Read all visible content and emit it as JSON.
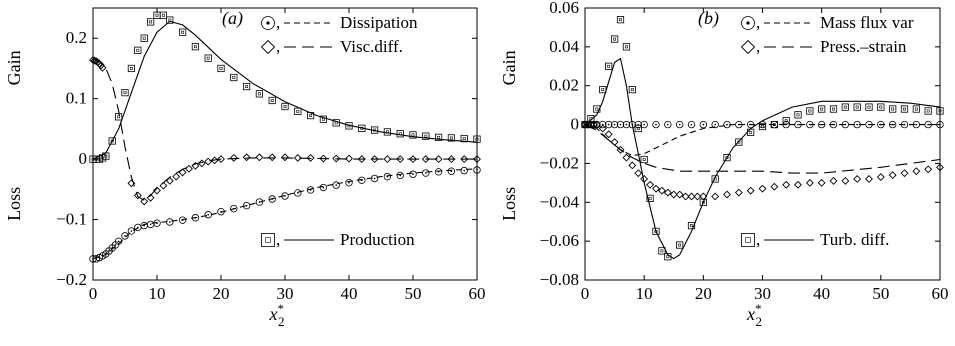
{
  "chart_data": [
    {
      "type": "line",
      "panel_label": "(a)",
      "xlabel": "x*2",
      "ylabel_top": "Gain",
      "ylabel_bottom": "Loss",
      "xlim": [
        0,
        60
      ],
      "ylim": [
        -0.2,
        0.25
      ],
      "x_ticks": [
        0,
        10,
        20,
        30,
        40,
        50,
        60
      ],
      "y_ticks": [
        -0.2,
        -0.1,
        0,
        0.1,
        0.2
      ],
      "x_tick_labels": [
        "0",
        "10",
        "20",
        "30",
        "40",
        "50",
        "60"
      ],
      "y_tick_labels": [
        "−0.2",
        "−0.1",
        "0",
        "0.1",
        "0.2"
      ],
      "grid": false,
      "series": [
        {
          "name": "Dissipation",
          "line_style": "short-dash",
          "marker": "circle",
          "x": [
            0,
            2,
            4,
            6,
            8,
            10,
            12,
            14,
            16,
            18,
            20,
            25,
            30,
            35,
            40,
            45,
            50,
            55,
            60
          ],
          "y": [
            -0.165,
            -0.158,
            -0.14,
            -0.12,
            -0.108,
            -0.105,
            -0.103,
            -0.1,
            -0.097,
            -0.093,
            -0.088,
            -0.074,
            -0.06,
            -0.047,
            -0.037,
            -0.029,
            -0.023,
            -0.019,
            -0.016
          ]
        },
        {
          "name": "Visc.diff.",
          "line_style": "long-dash",
          "marker": "diamond",
          "x": [
            0,
            1,
            2,
            3,
            4,
            5,
            6,
            7,
            8,
            9,
            10,
            12,
            14,
            16,
            18,
            20,
            25,
            30,
            35,
            40,
            50,
            60
          ],
          "y": [
            0.165,
            0.162,
            0.15,
            0.125,
            0.08,
            0.02,
            -0.03,
            -0.062,
            -0.068,
            -0.06,
            -0.048,
            -0.03,
            -0.017,
            -0.008,
            -0.003,
            0.0,
            0.002,
            0.002,
            0.001,
            0.0,
            0.0,
            0.0
          ]
        },
        {
          "name": "Production",
          "line_style": "solid",
          "marker": "square",
          "x": [
            0,
            2,
            4,
            6,
            8,
            10,
            12,
            14,
            16,
            18,
            20,
            25,
            30,
            35,
            40,
            45,
            50,
            55,
            60
          ],
          "y": [
            0.0,
            0.01,
            0.05,
            0.11,
            0.17,
            0.21,
            0.228,
            0.222,
            0.205,
            0.185,
            0.165,
            0.125,
            0.095,
            0.072,
            0.056,
            0.045,
            0.037,
            0.032,
            0.028
          ]
        }
      ],
      "marker_points": {
        "circle": {
          "x": [
            0,
            0.5,
            1,
            1.5,
            2,
            2.5,
            3,
            3.5,
            4,
            5,
            6,
            7,
            8,
            9,
            10,
            12,
            14,
            16,
            18,
            20,
            22,
            24,
            26,
            28,
            30,
            32,
            34,
            36,
            38,
            40,
            42,
            44,
            46,
            48,
            50,
            52,
            54,
            56,
            58,
            60
          ],
          "y": [
            -0.165,
            -0.165,
            -0.163,
            -0.16,
            -0.157,
            -0.152,
            -0.147,
            -0.142,
            -0.136,
            -0.127,
            -0.119,
            -0.113,
            -0.11,
            -0.108,
            -0.106,
            -0.104,
            -0.101,
            -0.097,
            -0.092,
            -0.087,
            -0.082,
            -0.077,
            -0.071,
            -0.066,
            -0.061,
            -0.056,
            -0.051,
            -0.047,
            -0.043,
            -0.039,
            -0.035,
            -0.032,
            -0.029,
            -0.027,
            -0.025,
            -0.023,
            -0.021,
            -0.02,
            -0.019,
            -0.018
          ]
        },
        "diamond": {
          "x": [
            0,
            0.25,
            0.5,
            0.75,
            1,
            1.25,
            1.5,
            6,
            7,
            8,
            9,
            10,
            11,
            12,
            13,
            14,
            15,
            16,
            17,
            18,
            19,
            20,
            22,
            24,
            26,
            28,
            30,
            32,
            34,
            36,
            38,
            40,
            42,
            44,
            46,
            48,
            50,
            52,
            54,
            56,
            58,
            60
          ],
          "y": [
            0.164,
            0.163,
            0.162,
            0.16,
            0.158,
            0.155,
            0.151,
            -0.04,
            -0.06,
            -0.07,
            -0.064,
            -0.052,
            -0.044,
            -0.036,
            -0.029,
            -0.022,
            -0.016,
            -0.011,
            -0.007,
            -0.004,
            -0.002,
            0.0,
            0.002,
            0.003,
            0.003,
            0.003,
            0.003,
            0.002,
            0.002,
            0.001,
            0.001,
            0.001,
            0.0,
            0.0,
            0.0,
            0.0,
            0.0,
            0.0,
            0.0,
            0.0,
            0.0,
            0.0
          ]
        },
        "square": {
          "x": [
            0,
            0.5,
            1,
            1.5,
            2,
            3,
            4,
            5,
            6,
            7,
            8,
            9,
            10,
            11,
            12,
            14,
            16,
            18,
            20,
            22,
            24,
            26,
            28,
            30,
            32,
            34,
            36,
            38,
            40,
            42,
            44,
            46,
            48,
            50,
            52,
            54,
            56,
            58,
            60
          ],
          "y": [
            0.0,
            0.0,
            0.0,
            0.002,
            0.005,
            0.03,
            0.07,
            0.11,
            0.15,
            0.18,
            0.2,
            0.227,
            0.238,
            0.238,
            0.23,
            0.21,
            0.186,
            0.167,
            0.15,
            0.135,
            0.12,
            0.108,
            0.097,
            0.087,
            0.079,
            0.072,
            0.066,
            0.06,
            0.055,
            0.051,
            0.048,
            0.045,
            0.042,
            0.04,
            0.038,
            0.036,
            0.035,
            0.034,
            0.033
          ]
        }
      },
      "legend": [
        {
          "marker": "circle",
          "line_style": "short-dash",
          "label": "Dissipation",
          "position": "top-right"
        },
        {
          "marker": "diamond",
          "line_style": "long-dash",
          "label": "Visc.diff.",
          "position": "top-right"
        },
        {
          "marker": "square",
          "line_style": "solid",
          "label": "Production",
          "position": "bottom-right"
        }
      ]
    },
    {
      "type": "line",
      "panel_label": "(b)",
      "xlabel": "x*2",
      "ylabel_top": "Gain",
      "ylabel_bottom": "Loss",
      "xlim": [
        0,
        60
      ],
      "ylim": [
        -0.08,
        0.06
      ],
      "x_ticks": [
        0,
        10,
        20,
        30,
        40,
        50,
        60
      ],
      "y_ticks": [
        -0.08,
        -0.06,
        -0.04,
        -0.02,
        0,
        0.02,
        0.04,
        0.06
      ],
      "x_tick_labels": [
        "0",
        "10",
        "20",
        "30",
        "40",
        "50",
        "60"
      ],
      "y_tick_labels": [
        "−0.08",
        "−0.06",
        "−0.04",
        "−0.02",
        "0",
        "0.02",
        "0.04",
        "0.06"
      ],
      "grid": false,
      "series": [
        {
          "name": "Mass flux var",
          "line_style": "short-dash",
          "marker": "circle",
          "x": [
            0,
            2,
            4,
            6,
            8,
            10,
            12,
            14,
            16,
            18,
            20,
            25,
            30,
            35,
            40,
            50,
            60
          ],
          "y": [
            0.0,
            -0.002,
            -0.008,
            -0.013,
            -0.016,
            -0.015,
            -0.012,
            -0.009,
            -0.006,
            -0.004,
            -0.002,
            0.0,
            0.0,
            0.0,
            0.0,
            0.0,
            0.0
          ]
        },
        {
          "name": "Press.–strain",
          "line_style": "long-dash",
          "marker": "diamond",
          "x": [
            0,
            2,
            4,
            6,
            8,
            10,
            12,
            14,
            16,
            18,
            20,
            25,
            30,
            35,
            40,
            50,
            60
          ],
          "y": [
            0.0,
            -0.003,
            -0.008,
            -0.013,
            -0.017,
            -0.02,
            -0.022,
            -0.023,
            -0.024,
            -0.024,
            -0.024,
            -0.024,
            -0.024,
            -0.025,
            -0.025,
            -0.022,
            -0.018
          ]
        },
        {
          "name": "Turb. diff.",
          "line_style": "solid",
          "marker": "square",
          "x": [
            0,
            2,
            3,
            4,
            5,
            6,
            7,
            8,
            9,
            10,
            12,
            14,
            15,
            16,
            18,
            20,
            22,
            25,
            28,
            30,
            35,
            40,
            45,
            50,
            55,
            60
          ],
          "y": [
            0.0,
            0.005,
            0.012,
            0.022,
            0.032,
            0.034,
            0.02,
            0.0,
            -0.015,
            -0.03,
            -0.055,
            -0.067,
            -0.069,
            -0.067,
            -0.055,
            -0.04,
            -0.027,
            -0.012,
            -0.002,
            0.002,
            0.009,
            0.012,
            0.012,
            0.012,
            0.011,
            0.009
          ]
        }
      ],
      "marker_points": {
        "circle": {
          "x": [
            0,
            0.5,
            1,
            1.5,
            2,
            3,
            4,
            5,
            6,
            7,
            8,
            9,
            10,
            12,
            14,
            16,
            18,
            20,
            22,
            24,
            26,
            28,
            30,
            32,
            34,
            36,
            38,
            40,
            42,
            44,
            46,
            48,
            50,
            52,
            54,
            56,
            58,
            60
          ],
          "y": [
            0,
            0,
            0,
            0,
            0,
            0,
            0,
            0,
            0,
            0,
            0,
            0,
            0,
            0,
            0,
            0,
            0,
            0,
            0,
            0,
            0,
            0,
            0,
            0,
            0,
            0,
            0,
            0,
            0,
            0,
            0,
            0,
            0,
            0,
            0,
            0,
            0,
            0
          ]
        },
        "diamond": {
          "x": [
            0,
            0.5,
            1,
            1.5,
            2,
            3,
            4,
            5,
            6,
            7,
            8,
            9,
            10,
            11,
            12,
            13,
            14,
            15,
            16,
            17,
            18,
            19,
            20,
            22,
            24,
            26,
            28,
            30,
            32,
            34,
            36,
            38,
            40,
            42,
            44,
            46,
            48,
            50,
            52,
            54,
            56,
            58,
            60
          ],
          "y": [
            0.0,
            0.0,
            0.0,
            0.0,
            0.0,
            -0.002,
            -0.005,
            -0.009,
            -0.013,
            -0.017,
            -0.021,
            -0.025,
            -0.028,
            -0.031,
            -0.033,
            -0.034,
            -0.035,
            -0.036,
            -0.036,
            -0.037,
            -0.037,
            -0.037,
            -0.037,
            -0.037,
            -0.036,
            -0.035,
            -0.034,
            -0.033,
            -0.032,
            -0.031,
            -0.031,
            -0.03,
            -0.03,
            -0.029,
            -0.029,
            -0.028,
            -0.028,
            -0.027,
            -0.026,
            -0.025,
            -0.024,
            -0.023,
            -0.022
          ]
        },
        "square": {
          "x": [
            0,
            1,
            2,
            3,
            4,
            5,
            6,
            7,
            8,
            9,
            10,
            11,
            12,
            13,
            14,
            16,
            18,
            20,
            22,
            24,
            26,
            28,
            30,
            32,
            34,
            36,
            38,
            40,
            42,
            44,
            46,
            48,
            50,
            52,
            54,
            56,
            58,
            60
          ],
          "y": [
            0.0,
            0.003,
            0.008,
            0.018,
            0.03,
            0.044,
            0.054,
            0.04,
            0.018,
            -0.002,
            -0.018,
            -0.038,
            -0.055,
            -0.065,
            -0.068,
            -0.062,
            -0.052,
            -0.04,
            -0.028,
            -0.017,
            -0.009,
            -0.004,
            -0.001,
            0.0,
            0.002,
            0.005,
            0.007,
            0.008,
            0.008,
            0.009,
            0.009,
            0.009,
            0.009,
            0.008,
            0.008,
            0.008,
            0.007,
            0.007
          ]
        }
      },
      "legend": [
        {
          "marker": "circle",
          "line_style": "short-dash",
          "label": "Mass flux var",
          "position": "top-right"
        },
        {
          "marker": "diamond",
          "line_style": "long-dash",
          "label": "Press.–strain",
          "position": "top-right"
        },
        {
          "marker": "square",
          "line_style": "solid",
          "label": "Turb. diff.",
          "position": "bottom-right"
        }
      ]
    }
  ]
}
